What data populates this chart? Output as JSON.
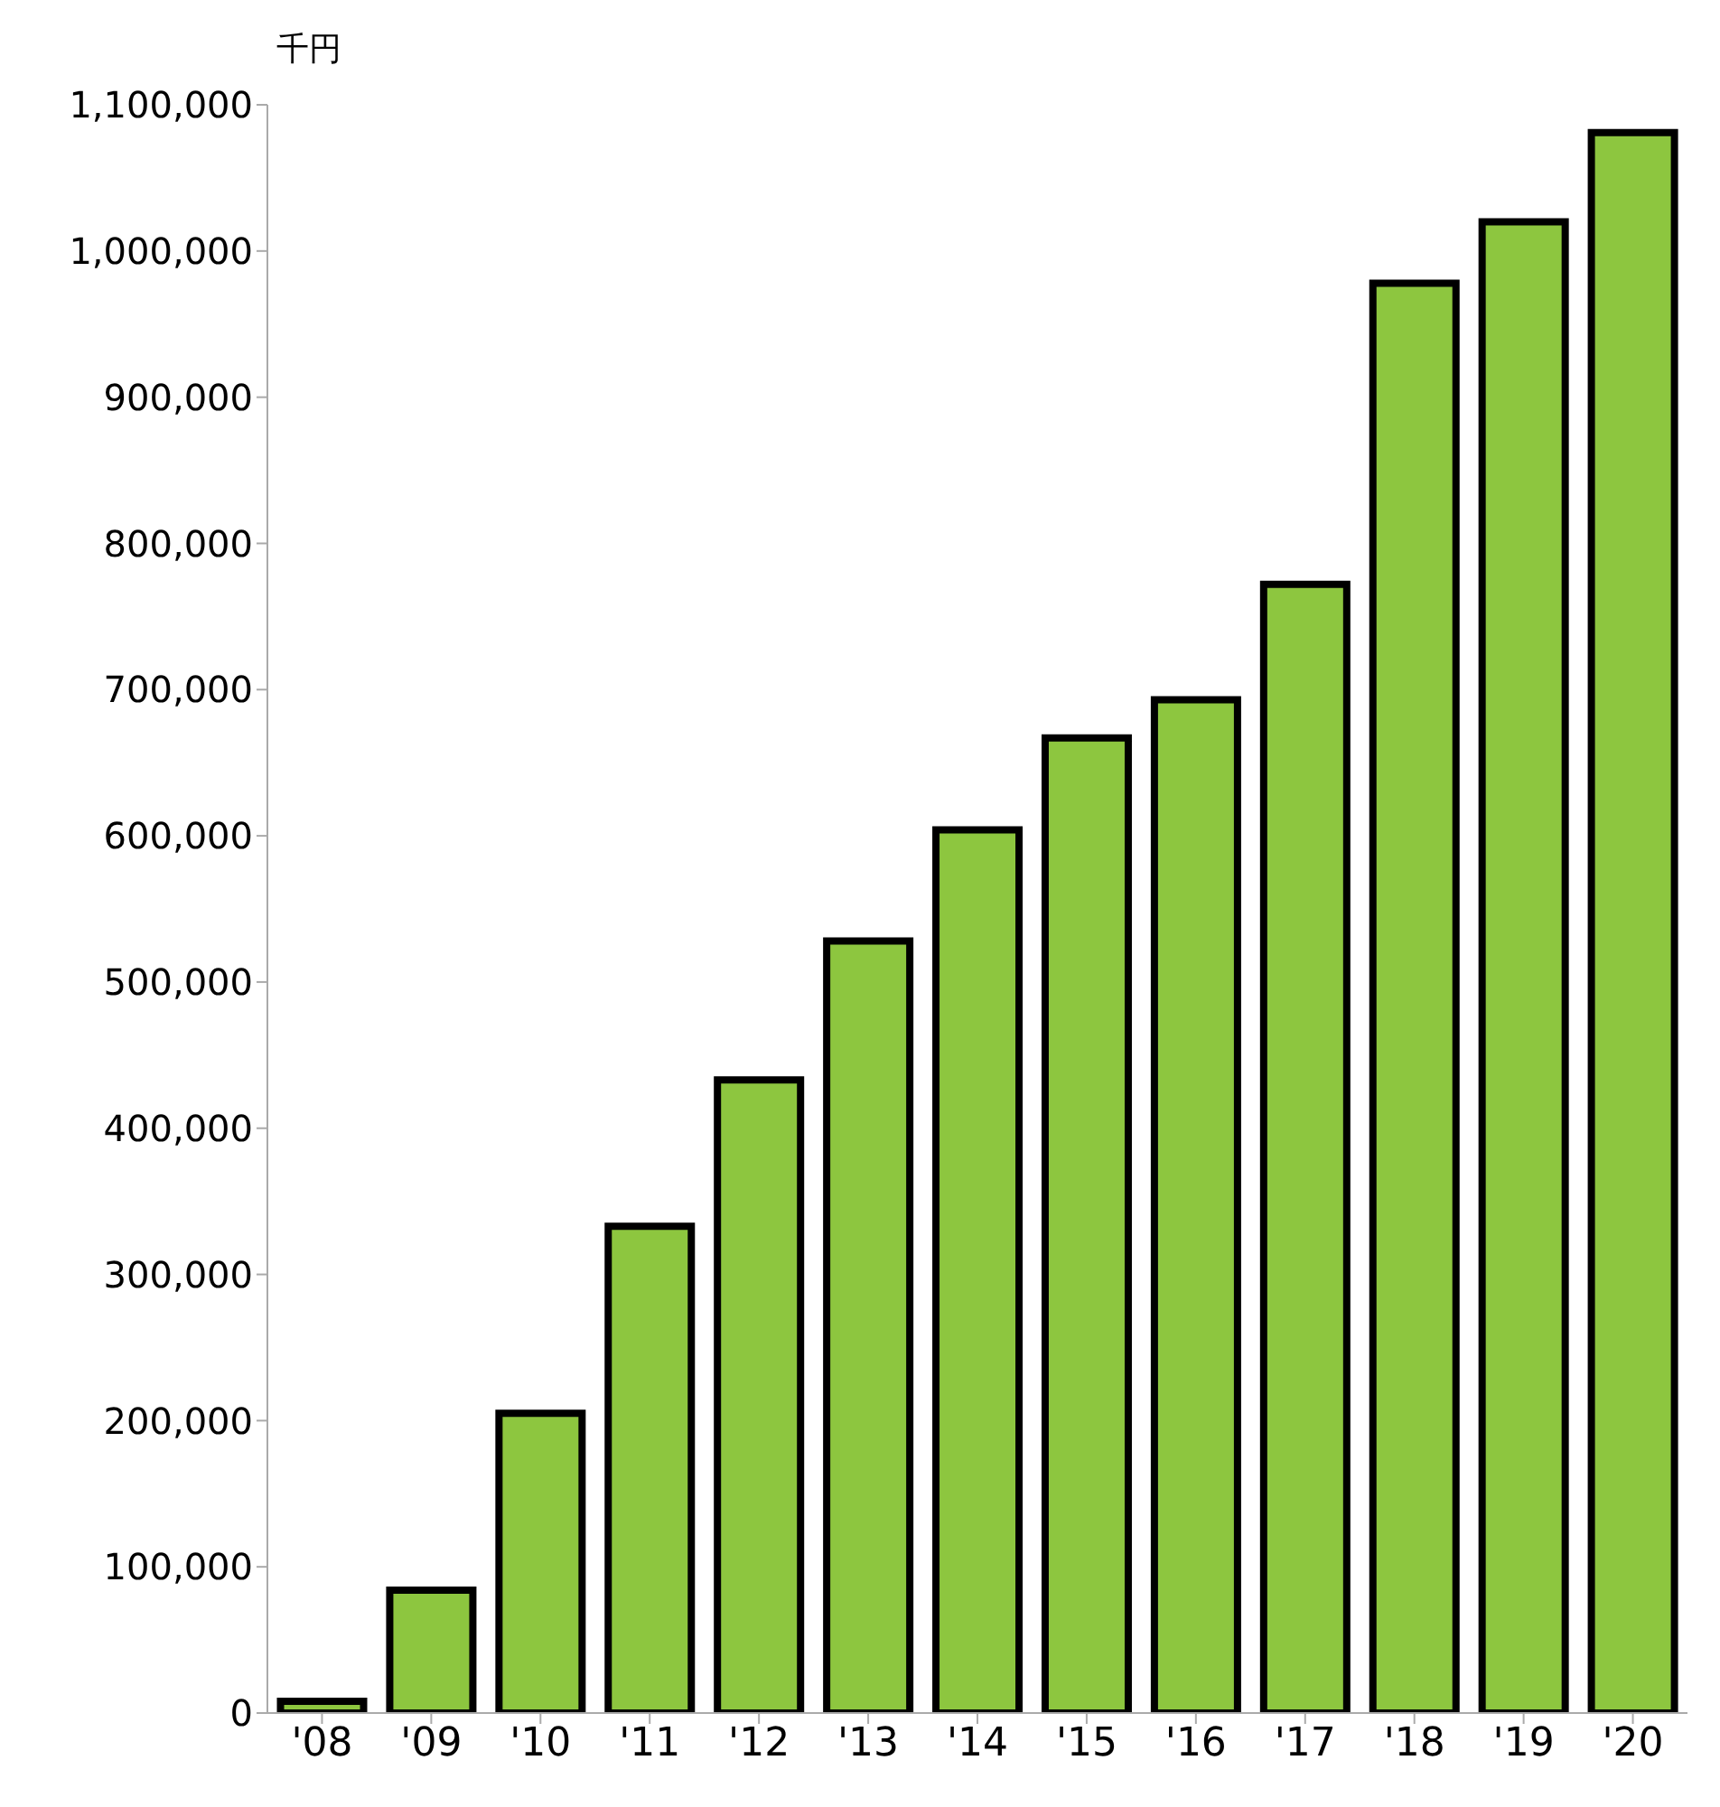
{
  "chart_data": {
    "type": "bar",
    "ylabel": "千円",
    "categories": [
      "'08",
      "'09",
      "'10",
      "'11",
      "'12",
      "'13",
      "'14",
      "'15",
      "'16",
      "'17",
      "'18",
      "'19",
      "'20"
    ],
    "values": [
      8000,
      84000,
      205000,
      333000,
      433000,
      528000,
      604000,
      667000,
      693000,
      772000,
      978000,
      1020000,
      1081000
    ],
    "color": "#8dc63f",
    "ylim": [
      0,
      1100000
    ],
    "yticks": [
      0,
      {
        "value": 100000,
        "label": "100,000"
      },
      {
        "value": 200000,
        "label": "200,000"
      },
      {
        "value": 300000,
        "label": "300,000"
      },
      {
        "value": 400000,
        "label": "400,000"
      },
      {
        "value": 500000,
        "label": "500,000"
      },
      {
        "value": 600000,
        "label": "600,000"
      },
      {
        "value": 700000,
        "label": "700,000"
      },
      {
        "value": 800000,
        "label": "800,000"
      },
      {
        "value": 900000,
        "label": "900,000"
      },
      {
        "value": 1000000,
        "label": "1,000,000"
      },
      {
        "value": 1100000,
        "label": "1,100,000"
      }
    ],
    "grid": false
  }
}
